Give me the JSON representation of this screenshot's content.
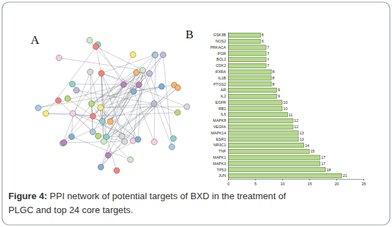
{
  "panel_labels": [
    "A",
    "B"
  ],
  "caption_label": "Figure 4:",
  "caption_lines": [
    "PPI network of potential targets of BXD in the treatment of",
    "PLGC and top 24 core targets."
  ],
  "chart_data": {
    "type": "bar",
    "orientation": "horizontal",
    "data_labels": true,
    "color": "#b5d98a",
    "categories": [
      "GSK3B",
      "NOS2",
      "PRKACA",
      "PGR",
      "BCL2",
      "CDK2",
      "RXRA",
      "IL1B",
      "PTGS2",
      "AR",
      "IL2",
      "EGFR",
      "RB1",
      "IL6",
      "MAPK8",
      "VEGFA",
      "MAPK14",
      "ESR1",
      "NR3C1",
      "TNF",
      "MAPK1",
      "MAPK3",
      "TP53",
      "JUN"
    ],
    "values": [
      6,
      6,
      7,
      7,
      7,
      7,
      8,
      8,
      8,
      9,
      9,
      10,
      10,
      11,
      12,
      12,
      13,
      13,
      14,
      15,
      17,
      17,
      18,
      21
    ],
    "xlim": [
      0,
      25
    ],
    "xticks": [
      0,
      5,
      10,
      15,
      20,
      25
    ],
    "grid": false
  }
}
